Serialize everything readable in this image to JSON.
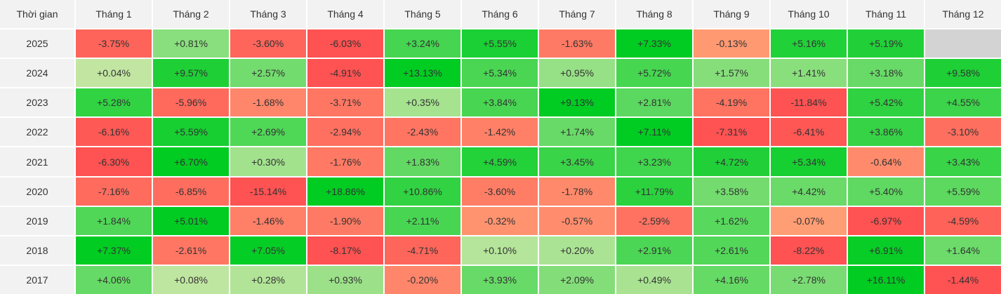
{
  "table": {
    "header": [
      "Thời gian",
      "Tháng 1",
      "Tháng 2",
      "Tháng 3",
      "Tháng 4",
      "Tháng 5",
      "Tháng 6",
      "Tháng 7",
      "Tháng 8",
      "Tháng 9",
      "Tháng 10",
      "Tháng 11",
      "Tháng 12"
    ],
    "rows": [
      {
        "year": "2025",
        "cells": [
          "-3.75%",
          "+0.81%",
          "-3.60%",
          "-6.03%",
          "+3.24%",
          "+5.55%",
          "-1.63%",
          "+7.33%",
          "-0.13%",
          "+5.16%",
          "+5.19%",
          null
        ]
      },
      {
        "year": "2024",
        "cells": [
          "+0.04%",
          "+9.57%",
          "+2.57%",
          "-4.91%",
          "+13.13%",
          "+5.34%",
          "+0.95%",
          "+5.72%",
          "+1.57%",
          "+1.41%",
          "+3.18%",
          "+9.58%"
        ]
      },
      {
        "year": "2023",
        "cells": [
          "+5.28%",
          "-5.96%",
          "-1.68%",
          "-3.71%",
          "+0.35%",
          "+3.84%",
          "+9.13%",
          "+2.81%",
          "-4.19%",
          "-11.84%",
          "+5.42%",
          "+4.55%"
        ]
      },
      {
        "year": "2022",
        "cells": [
          "-6.16%",
          "+5.59%",
          "+2.69%",
          "-2.94%",
          "-2.43%",
          "-1.42%",
          "+1.74%",
          "+7.11%",
          "-7.31%",
          "-6.41%",
          "+3.86%",
          "-3.10%"
        ]
      },
      {
        "year": "2021",
        "cells": [
          "-6.30%",
          "+6.70%",
          "+0.30%",
          "-1.76%",
          "+1.83%",
          "+4.59%",
          "+3.45%",
          "+3.23%",
          "+4.72%",
          "+5.34%",
          "-0.64%",
          "+3.43%"
        ]
      },
      {
        "year": "2020",
        "cells": [
          "-7.16%",
          "-6.85%",
          "-15.14%",
          "+18.86%",
          "+10.86%",
          "-3.60%",
          "-1.78%",
          "+11.79%",
          "+3.58%",
          "+4.42%",
          "+5.40%",
          "+5.59%"
        ]
      },
      {
        "year": "2019",
        "cells": [
          "+1.84%",
          "+5.01%",
          "-1.46%",
          "-1.90%",
          "+2.11%",
          "-0.32%",
          "-0.57%",
          "-2.59%",
          "+1.62%",
          "-0.07%",
          "-6.97%",
          "-4.59%"
        ]
      },
      {
        "year": "2018",
        "cells": [
          "+7.37%",
          "-2.61%",
          "+7.05%",
          "-8.17%",
          "-4.71%",
          "+0.10%",
          "+0.20%",
          "+2.91%",
          "+2.61%",
          "-8.22%",
          "+6.91%",
          "+1.64%"
        ]
      },
      {
        "year": "2017",
        "cells": [
          "+4.06%",
          "+0.08%",
          "+0.28%",
          "+0.93%",
          "-0.20%",
          "+3.93%",
          "+2.09%",
          "+0.49%",
          "+4.16%",
          "+2.78%",
          "+16.11%",
          "-1.44%"
        ]
      }
    ]
  }
}
